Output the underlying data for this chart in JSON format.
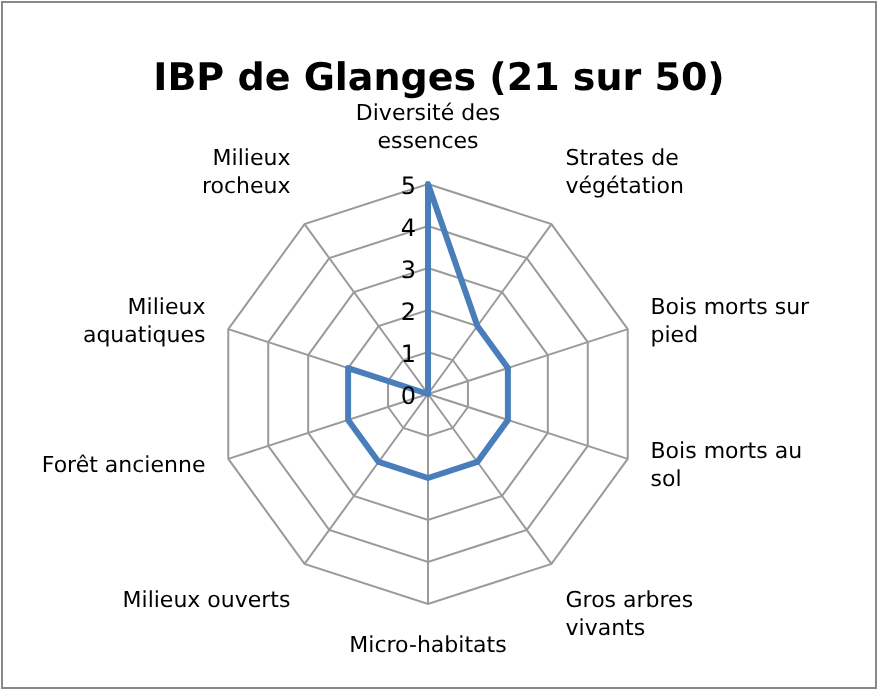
{
  "chart_data": {
    "type": "radar",
    "title": "IBP de Glanges (21 sur 50)",
    "categories": [
      "Diversité des essences",
      "Strates de végétation",
      "Bois morts sur pied",
      "Bois morts au sol",
      "Gros arbres vivants",
      "Micro-habitats",
      "Milieux ouverts",
      "Forêt ancienne",
      "Milieux aquatiques",
      "Milieux rocheux"
    ],
    "series": [
      {
        "color": "#4a7ebb",
        "values": [
          5,
          2,
          2,
          2,
          2,
          2,
          2,
          2,
          2,
          0
        ]
      }
    ],
    "ylim": [
      0,
      5
    ],
    "yticks": [
      0,
      1,
      2,
      3,
      4,
      5
    ],
    "grid": true,
    "marker": "none"
  }
}
